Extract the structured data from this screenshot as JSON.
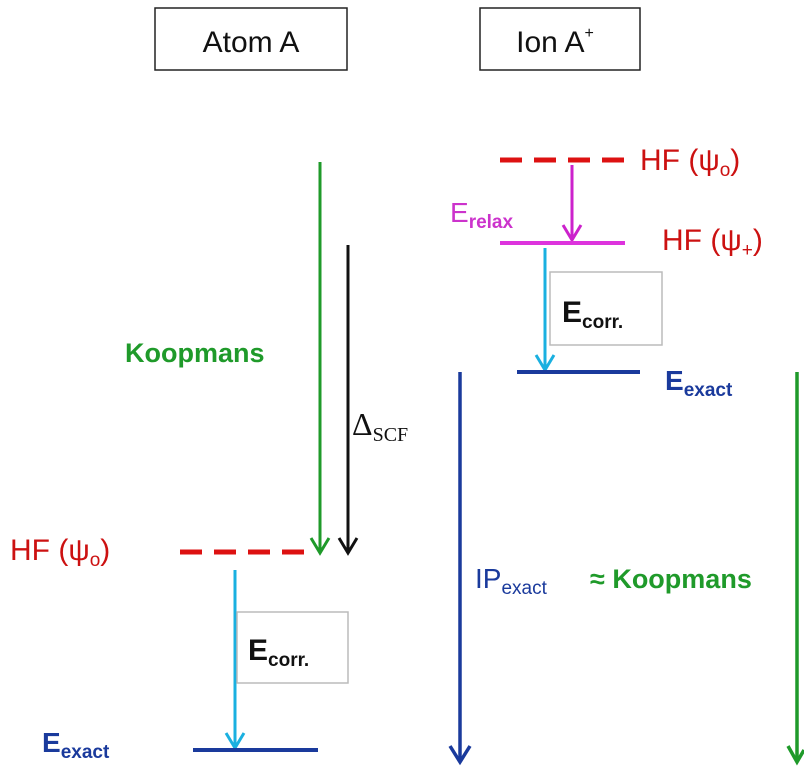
{
  "header": {
    "atom": "Atom A",
    "ion": "Ion A",
    "ion_charge": "+"
  },
  "ion_levels": {
    "hf0": {
      "text": "HF (ψ",
      "sub": "o",
      "post": ")"
    },
    "relax": {
      "text": "E",
      "sub": "relax"
    },
    "hfplus": {
      "text": "HF (ψ",
      "sub": "+",
      "post": ")"
    },
    "corr": {
      "text": "E",
      "sub": "corr."
    },
    "exact": {
      "text": "E",
      "sub": "exact"
    }
  },
  "atom_levels": {
    "koopmans": "Koopmans",
    "delta": {
      "text": "Δ",
      "sub": "SCF"
    },
    "hf0": {
      "text": "HF (ψ",
      "sub": "o",
      "post": ")"
    },
    "corr": {
      "text": "E",
      "sub": "corr."
    },
    "exact": {
      "text": "E",
      "sub": "exact"
    }
  },
  "ip": {
    "text": "IP",
    "sub": "exact"
  },
  "approx": "≈ Koopmans"
}
